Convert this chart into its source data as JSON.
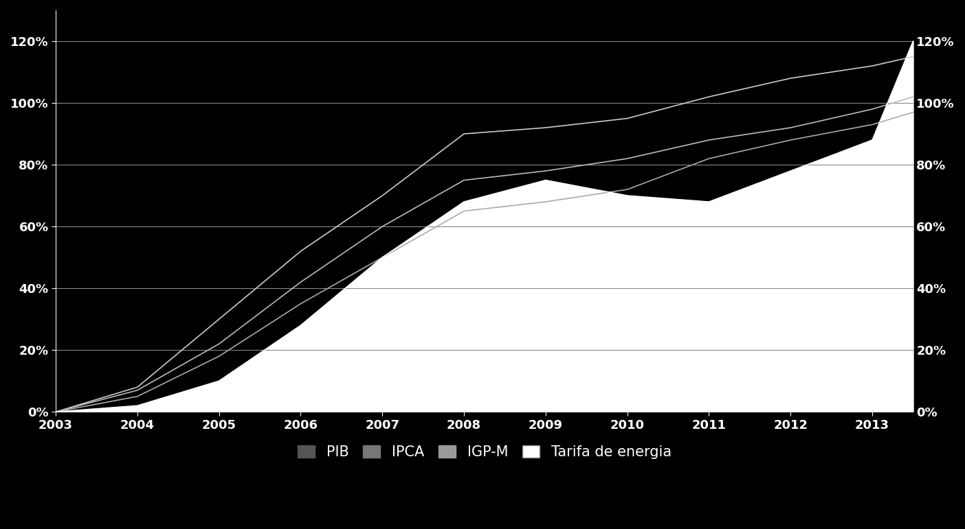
{
  "years": [
    2003,
    2004,
    2005,
    2006,
    2007,
    2008,
    2009,
    2010,
    2011,
    2012,
    2013,
    2013.5
  ],
  "PIB": [
    0,
    8,
    30,
    52,
    70,
    90,
    92,
    95,
    102,
    108,
    112,
    115
  ],
  "IPCA": [
    0,
    5,
    18,
    35,
    50,
    65,
    68,
    72,
    82,
    88,
    93,
    97
  ],
  "IGPM": [
    0,
    7,
    22,
    42,
    60,
    75,
    78,
    82,
    88,
    92,
    98,
    102
  ],
  "Tarifa": [
    0,
    2,
    10,
    28,
    50,
    68,
    75,
    70,
    68,
    78,
    88,
    120
  ],
  "background_color": "#000000",
  "area_color_Tarifa": "#ffffff",
  "line_color_PIB": "#cccccc",
  "line_color_IPCA": "#aaaaaa",
  "line_color_IGPM": "#bbbbbb",
  "line_color_Tarifa": "#ffffff",
  "text_color": "#ffffff",
  "grid_color": "#888888",
  "ylim": [
    0,
    130
  ],
  "yticks": [
    0,
    20,
    40,
    60,
    80,
    100,
    120
  ],
  "ytick_labels": [
    "0%",
    "20%",
    "40%",
    "60%",
    "80%",
    "100%",
    "120%"
  ],
  "xtick_years": [
    2003,
    2004,
    2005,
    2006,
    2007,
    2008,
    2009,
    2010,
    2011,
    2012,
    2013
  ],
  "legend_labels": [
    "PIB",
    "IPCA",
    "IGP-M",
    "Tarifa de energia"
  ],
  "legend_colors": [
    "#555555",
    "#777777",
    "#999999",
    "#ffffff"
  ],
  "figsize": [
    14.04,
    7.71
  ],
  "dpi": 100
}
